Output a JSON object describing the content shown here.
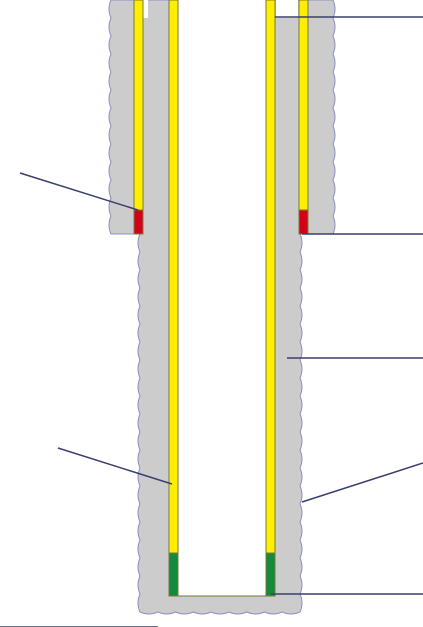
{
  "diagram": {
    "colors": {
      "background": "#ffffff",
      "formation": "#cccccc",
      "formation_edge": "#8a8fc0",
      "casing": "#ffee00",
      "casing_edge": "#7a7a3a",
      "seal_upper": "#d4001a",
      "seal_lower": "#138a40",
      "bore": "#ffffff",
      "leader_line": "#3a3f6e"
    },
    "components": [
      "formation",
      "upper-casing-string",
      "inner-casing-string",
      "upper-seal",
      "lower-seal",
      "wellbore"
    ],
    "labels": []
  }
}
